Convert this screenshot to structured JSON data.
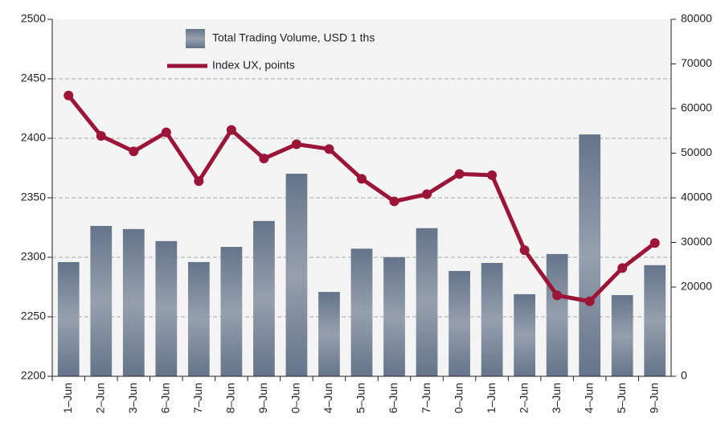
{
  "chart_data": {
    "type": "bar_line",
    "categories": [
      "1–Jun",
      "2–Jun",
      "3–Jun",
      "6–Jun",
      "7–Jun",
      "8–Jun",
      "9–Jun",
      "0–Jun",
      "4–Jun",
      "5–Jun",
      "6–Jun",
      "7–Jun",
      "0–Jun",
      "1–Jun",
      "2–Jun",
      "3–Jun",
      "4–Jun",
      "5–Jun",
      "9–Jun"
    ],
    "series": [
      {
        "name": "Total Trading Volume, USD 1 ths",
        "type": "bar",
        "axis": "y2",
        "color": "#7a8696",
        "values": [
          25600,
          33700,
          33000,
          30300,
          25600,
          29000,
          34800,
          45400,
          18900,
          28600,
          26700,
          33200,
          23600,
          25400,
          18400,
          27400,
          54200,
          18200,
          24900
        ]
      },
      {
        "name": "Index UX, points",
        "type": "line",
        "axis": "y",
        "color": "#9b1538",
        "values": [
          2436,
          2402,
          2389,
          2405,
          2364,
          2407,
          2383,
          2395,
          2391,
          2366,
          2347,
          2353,
          2370,
          2369,
          2306,
          2268,
          2263,
          2291,
          2312
        ]
      }
    ],
    "ylim": [
      2200,
      2500
    ],
    "yticks": [
      2200,
      2250,
      2300,
      2350,
      2400,
      2450,
      2500
    ],
    "y2lim": [
      0,
      80000
    ],
    "y2ticks": [
      0,
      20000,
      30000,
      40000,
      50000,
      60000,
      70000,
      80000
    ],
    "grid": true,
    "legend": "top-left"
  }
}
